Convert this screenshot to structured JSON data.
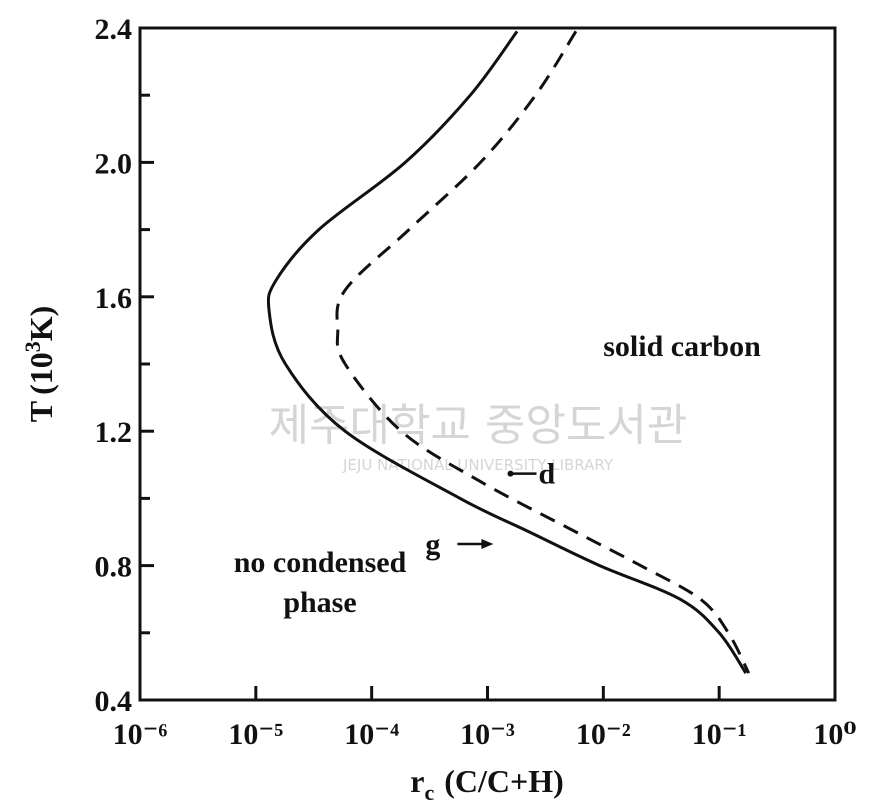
{
  "chart_data": {
    "type": "line",
    "x_label": {
      "symbol": "r",
      "subscript": "c",
      "unit": "(C/C+H)"
    },
    "y_label": {
      "symbol": "T",
      "base": "(10",
      "power": "3",
      "unit": "K)"
    },
    "xscale": "log",
    "xlim": [
      1e-06,
      1
    ],
    "ylim": [
      0.4,
      2.4
    ],
    "xticks": [
      {
        "value": 1e-06,
        "label": "10⁻⁶"
      },
      {
        "value": 1e-05,
        "label": "10⁻⁵"
      },
      {
        "value": 0.0001,
        "label": "10⁻⁴"
      },
      {
        "value": 0.001,
        "label": "10⁻³"
      },
      {
        "value": 0.01,
        "label": "10⁻²"
      },
      {
        "value": 0.1,
        "label": "10⁻¹"
      },
      {
        "value": 1,
        "label": "10⁰"
      }
    ],
    "yticks": [
      0.4,
      0.8,
      1.2,
      1.6,
      {
        "value": 2,
        "label": "2.0"
      },
      2.4
    ],
    "yminor_ticks": [
      0.6,
      1,
      1.4,
      1.8,
      2.2
    ],
    "series": [
      {
        "name": "g",
        "color": "#111111",
        "dash": false,
        "x": [
          0.0018,
          0.00071,
          0.000195,
          3.5e-05,
          1.5e-05,
          1.3e-05,
          1.8e-05,
          5.9e-05,
          0.00058,
          0.0023,
          0.0093,
          0.046,
          0.1,
          0.17
        ],
        "values": [
          2.39,
          2.2,
          2.0,
          1.8,
          1.65,
          1.56,
          1.4,
          1.2,
          1.0,
          0.9,
          0.8,
          0.7,
          0.6,
          0.48
        ]
      },
      {
        "name": "d",
        "color": "#111111",
        "dash": true,
        "x": [
          0.0058,
          0.0026,
          0.00087,
          0.00021,
          5.9e-05,
          5.1e-05,
          5.9e-05,
          0.00018,
          0.00087,
          0.0058,
          0.021,
          0.069,
          0.12,
          0.18
        ],
        "values": [
          2.39,
          2.2,
          2.0,
          1.8,
          1.62,
          1.5,
          1.4,
          1.2,
          1.05,
          0.9,
          0.8,
          0.7,
          0.6,
          0.48
        ]
      }
    ],
    "annotations": {
      "solid_region": "solid carbon",
      "gas_region": [
        "no condensed",
        "phase"
      ]
    },
    "watermark": {
      "title": "제주대학교 중앙도서관",
      "subtitle": "JEJU NATIONAL UNIVERSITY LIBRARY"
    }
  }
}
